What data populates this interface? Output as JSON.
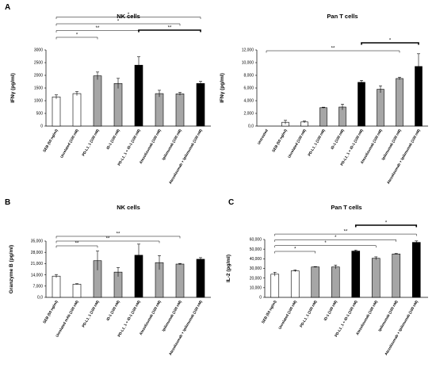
{
  "colors": {
    "white": "#ffffff",
    "gray": "#a6a6a6",
    "black": "#000000"
  },
  "chart_data": [
    {
      "panel": "A",
      "type": "bar",
      "title": "NK cells",
      "ylabel": "IFNγ (pg/ml)",
      "ylim": [
        0,
        3000
      ],
      "yticks": [
        "0",
        "500",
        "1000",
        "1500",
        "2000",
        "2500",
        "3000"
      ],
      "categories": [
        "SEB (50 ng/ml)",
        "Unrelated (100 nM)",
        "PD-L1_1 (100 nM)",
        "ID-1 (100 nM)",
        "PD-L1_1 + ID-1 (100 nM)",
        "Atezolizumab (100 nM)",
        "Ipilimumab (100 nM)",
        "Atezolizumab + Ipilimumab (100 nM)"
      ],
      "values": [
        1150,
        1280,
        1980,
        1680,
        2400,
        1280,
        1270,
        1680
      ],
      "errors": [
        80,
        80,
        150,
        200,
        330,
        130,
        60,
        80
      ],
      "bar_colors": [
        "white",
        "white",
        "gray",
        "gray",
        "black",
        "gray",
        "gray",
        "black"
      ],
      "brackets": [
        {
          "from": 0,
          "to": 2,
          "label": "*",
          "thick": false
        },
        {
          "from": 0,
          "to": 4,
          "label": "**",
          "thick": false
        },
        {
          "from": 0,
          "to": 6,
          "label": "*",
          "thick": false
        },
        {
          "from": 0,
          "to": 7,
          "label": "*",
          "thick": false
        },
        {
          "from": 4,
          "to": 7,
          "label": "**",
          "thick": true
        }
      ]
    },
    {
      "panel": "",
      "type": "bar",
      "title": "Pan T cells",
      "ylabel": "IFNγ (pg/ml)",
      "ylim": [
        0,
        12000
      ],
      "yticks": [
        "0,0",
        "2,000",
        "4,000",
        "6,000",
        "8,000",
        "10,000",
        "12,000"
      ],
      "categories": [
        "Untreated",
        "SEB (50 ng/ml)",
        "Unrelated (100 nM)",
        "PD-L1_1 (100 nM)",
        "ID-1 (100 nM)",
        "PD-L1_1 + ID-1 (100 nM)",
        "Atezolizumab (100 nM)",
        "Ipilimumab (100 nM)",
        "Atezolizumab + Ipilimumab (100 nM)"
      ],
      "values": [
        0,
        600,
        650,
        2900,
        3000,
        6900,
        5800,
        7500,
        9400
      ],
      "errors": [
        0,
        300,
        150,
        80,
        450,
        300,
        550,
        200,
        2000
      ],
      "bar_colors": [
        "white",
        "white",
        "white",
        "gray",
        "gray",
        "black",
        "gray",
        "gray",
        "black"
      ],
      "brackets": [
        {
          "from": 0,
          "to": 7,
          "label": "**",
          "thick": false
        },
        {
          "from": 5,
          "to": 8,
          "label": "*",
          "thick": true
        }
      ]
    },
    {
      "panel": "B",
      "type": "bar",
      "title": "NK cells",
      "ylabel": "Granzyme B (pg/ml)",
      "ylim": [
        0,
        35000
      ],
      "yticks": [
        "0,0",
        "7,000",
        "14,000",
        "21,000",
        "28,000",
        "35,000"
      ],
      "categories": [
        "SEB (50 ng/ml)",
        "Unrelated mAb (100 nM)",
        "PD-L1_1 (100 nM)",
        "ID-1 (100 nM)",
        "PD-L1_1 + ID-1 (100 nM)",
        "Atezolizumab (100 nM)",
        "Ipilimumab (100 nM)",
        "Atezolizumab + Ipilimumab (100 nM)"
      ],
      "values": [
        13200,
        8200,
        22800,
        15700,
        26200,
        21600,
        20700,
        23700
      ],
      "errors": [
        1000,
        300,
        6000,
        2800,
        6900,
        4400,
        400,
        1000
      ],
      "bar_colors": [
        "white",
        "white",
        "gray",
        "gray",
        "black",
        "gray",
        "gray",
        "black"
      ],
      "brackets": [
        {
          "from": 0,
          "to": 2,
          "label": "**",
          "thick": false
        },
        {
          "from": 0,
          "to": 5,
          "label": "**",
          "thick": false
        },
        {
          "from": 0,
          "to": 6,
          "label": "**",
          "thick": false
        }
      ]
    },
    {
      "panel": "C",
      "type": "bar",
      "title": "Pan T cells",
      "ylabel": "IL-2 (pg/ml)",
      "ylim": [
        0,
        60000
      ],
      "yticks": [
        "0",
        "10,000",
        "20,000",
        "30,000",
        "40,000",
        "50,000",
        "60,000"
      ],
      "categories": [
        "SEB (50 ng/ml)",
        "Unrelated (100 nM)",
        "PD-L1_1 (100 nM)",
        "ID-1 (100 nM)",
        "PD-L1_1 + ID-1 (100 nM)",
        "Atezolizumab (100 nM)",
        "Ipilimumab (100 nM)",
        "Atezolizumab + Ipilimumab (100 nM)"
      ],
      "values": [
        24000,
        27500,
        31500,
        31500,
        48000,
        40500,
        45000,
        57000
      ],
      "errors": [
        2000,
        1000,
        400,
        2000,
        1000,
        1500,
        500,
        1500
      ],
      "bar_colors": [
        "white",
        "white",
        "gray",
        "gray",
        "black",
        "gray",
        "gray",
        "black"
      ],
      "brackets": [
        {
          "from": 0,
          "to": 2,
          "label": "*",
          "thick": false
        },
        {
          "from": 0,
          "to": 5,
          "label": "*",
          "thick": false
        },
        {
          "from": 0,
          "to": 6,
          "label": "*",
          "thick": false
        },
        {
          "from": 0,
          "to": 7,
          "label": "**",
          "thick": false
        },
        {
          "from": 4,
          "to": 7,
          "label": "*",
          "thick": true
        }
      ]
    }
  ]
}
